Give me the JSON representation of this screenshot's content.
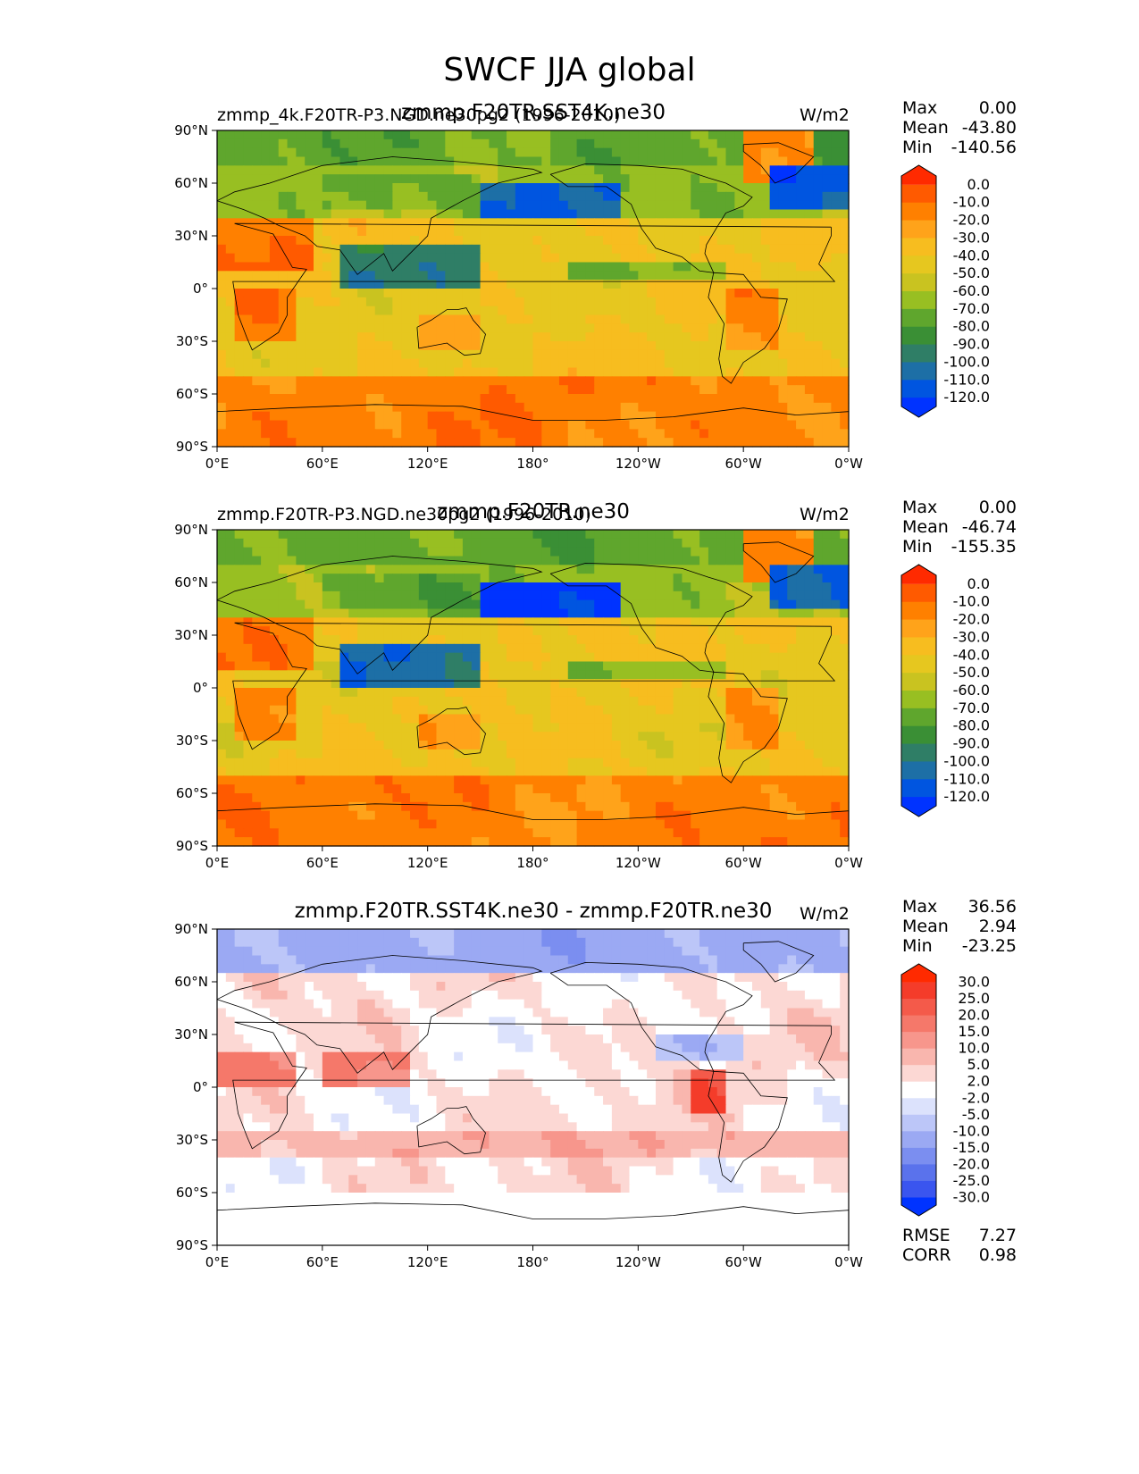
{
  "figure_title": "SWCF JJA global",
  "chart_data": [
    {
      "type": "heatmap",
      "left_label": "zmmp_4k.F20TR-P3.NGD.ne30pg2 (1996-2010)",
      "title": "zmmp.F20TR.SST4K.ne30",
      "units": "W/m2",
      "stats": {
        "max_label": "Max",
        "max": "0.00",
        "mean_label": "Mean",
        "mean": "-43.80",
        "min_label": "Min",
        "min": "-140.56"
      },
      "x_ticks": [
        "0°E",
        "60°E",
        "120°E",
        "180°",
        "120°W",
        "60°W",
        "0°W"
      ],
      "y_ticks": [
        "90°N",
        "60°N",
        "30°N",
        "0°",
        "30°S",
        "60°S",
        "90°S"
      ],
      "xlim": [
        0,
        360
      ],
      "ylim": [
        -90,
        90
      ],
      "colorbar": {
        "levels": [
          "0.0",
          "-10.0",
          "-20.0",
          "-30.0",
          "-40.0",
          "-50.0",
          "-60.0",
          "-70.0",
          "-80.0",
          "-90.0",
          "-100.0",
          "-110.0",
          "-120.0"
        ],
        "colors": [
          "#ff2a00",
          "#ff5a00",
          "#ff8000",
          "#ffa31a",
          "#f7bd1f",
          "#e6c71f",
          "#c9c320",
          "#98bf22",
          "#5fa62d",
          "#3a8f35",
          "#2f7e66",
          "#1d6fa6",
          "#0055e0",
          "#0033ff"
        ]
      },
      "variant": 0
    },
    {
      "type": "heatmap",
      "left_label": "zmmp.F20TR-P3.NGD.ne30pg2 (1996-2010)",
      "title": "zmmp.F20TR.ne30",
      "units": "W/m2",
      "stats": {
        "max_label": "Max",
        "max": "0.00",
        "mean_label": "Mean",
        "mean": "-46.74",
        "min_label": "Min",
        "min": "-155.35"
      },
      "x_ticks": [
        "0°E",
        "60°E",
        "120°E",
        "180°",
        "120°W",
        "60°W",
        "0°W"
      ],
      "y_ticks": [
        "90°N",
        "60°N",
        "30°N",
        "0°",
        "30°S",
        "60°S",
        "90°S"
      ],
      "xlim": [
        0,
        360
      ],
      "ylim": [
        -90,
        90
      ],
      "colorbar": {
        "levels": [
          "0.0",
          "-10.0",
          "-20.0",
          "-30.0",
          "-40.0",
          "-50.0",
          "-60.0",
          "-70.0",
          "-80.0",
          "-90.0",
          "-100.0",
          "-110.0",
          "-120.0"
        ],
        "colors": [
          "#ff2a00",
          "#ff5a00",
          "#ff8000",
          "#ffa31a",
          "#f7bd1f",
          "#e6c71f",
          "#c9c320",
          "#98bf22",
          "#5fa62d",
          "#3a8f35",
          "#2f7e66",
          "#1d6fa6",
          "#0055e0",
          "#0033ff"
        ]
      },
      "variant": 1
    },
    {
      "type": "heatmap",
      "left_label": "",
      "title": "zmmp.F20TR.SST4K.ne30 - zmmp.F20TR.ne30",
      "units": "W/m2",
      "stats": {
        "max_label": "Max",
        "max": "36.56",
        "mean_label": "Mean",
        "mean": "2.94",
        "min_label": "Min",
        "min": "-23.25"
      },
      "metrics": {
        "rmse_label": "RMSE",
        "rmse": "7.27",
        "corr_label": "CORR",
        "corr": "0.98"
      },
      "x_ticks": [
        "0°E",
        "60°E",
        "120°E",
        "180°",
        "120°W",
        "60°W",
        "0°W"
      ],
      "y_ticks": [
        "90°N",
        "60°N",
        "30°N",
        "0°",
        "30°S",
        "60°S",
        "90°S"
      ],
      "xlim": [
        0,
        360
      ],
      "ylim": [
        -90,
        90
      ],
      "colorbar": {
        "levels": [
          "30.0",
          "25.0",
          "20.0",
          "15.0",
          "10.0",
          "5.0",
          "2.0",
          "-2.0",
          "-5.0",
          "-10.0",
          "-15.0",
          "-20.0",
          "-25.0",
          "-30.0"
        ],
        "colors": [
          "#ff2a00",
          "#f43c2a",
          "#f45a4a",
          "#f5786a",
          "#f7968c",
          "#f9b6ae",
          "#fcd8d4",
          "#ffffff",
          "#dce2fc",
          "#bcc6f8",
          "#9ba9f3",
          "#7b8ef0",
          "#5a72ec",
          "#3a55ef",
          "#0033ff"
        ]
      },
      "variant": 2
    }
  ]
}
